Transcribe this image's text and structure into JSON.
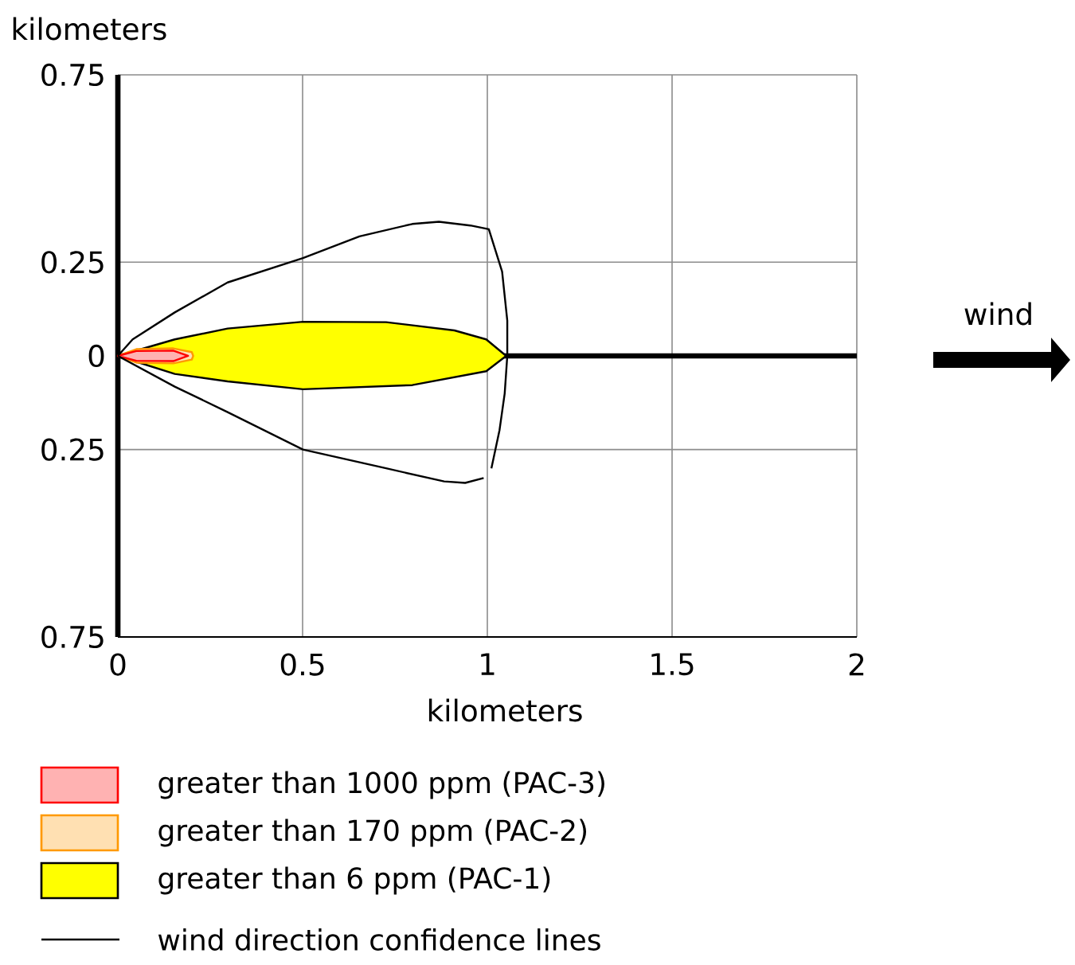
{
  "chart_data": {
    "type": "area",
    "xlabel": "kilometers",
    "ylabel": "kilometers",
    "annotations": [
      "wind"
    ],
    "xlim": [
      0,
      2
    ],
    "ylim": [
      -0.75,
      0.75
    ],
    "xticks": [
      0,
      0.5,
      1,
      1.5,
      2
    ],
    "yticks": [
      {
        "value": -0.75,
        "label": "0.75"
      },
      {
        "value": -0.25,
        "label": "0.25"
      },
      0,
      0.25,
      0.75
    ],
    "grid": true,
    "legend": "bottom",
    "ref_lines": [
      {
        "axis": "y",
        "value": 0,
        "color": "#000000"
      }
    ],
    "series": [
      {
        "name": "greater than 6 ppm (PAC-1)",
        "color": "#ffff00",
        "x": [
          0,
          0.154,
          0.297,
          0.501,
          0.726,
          0.911,
          0.997,
          1.051,
          0.997,
          0.797,
          0.501,
          0.297,
          0.154,
          0
        ],
        "values": [
          0,
          0.044,
          0.073,
          0.091,
          0.09,
          0.068,
          0.044,
          0,
          -0.041,
          -0.078,
          -0.089,
          -0.068,
          -0.048,
          0
        ]
      },
      {
        "name": "greater than 170 ppm (PAC-2)",
        "color": "#ff9900",
        "x": [
          0,
          0.05,
          0.15,
          0.2,
          0.204,
          0.2,
          0.15,
          0.05,
          0
        ],
        "values": [
          0,
          0.018,
          0.02,
          0.01,
          0,
          -0.01,
          -0.02,
          -0.018,
          0
        ]
      },
      {
        "name": "greater than 1000 ppm (PAC-3)",
        "color": "#ff0000",
        "x": [
          0,
          0.05,
          0.15,
          0.19,
          0.15,
          0.05,
          0
        ],
        "values": [
          0,
          0.013,
          0.014,
          0,
          -0.014,
          -0.013,
          0
        ]
      },
      {
        "name": "wind direction confidence lines",
        "type": "line",
        "color": "#000000",
        "x": [
          0,
          0.04,
          0.154,
          0.297,
          0.501,
          0.654,
          0.797,
          0.869,
          0.954,
          1.004,
          1.04,
          1.054,
          1.054,
          1.047,
          1.033,
          1.011
        ],
        "values": [
          0,
          0.044,
          0.116,
          0.196,
          0.261,
          0.319,
          0.352,
          0.358,
          0.348,
          0.338,
          0.225,
          0.094,
          0,
          -0.1,
          -0.198,
          -0.3
        ]
      },
      {
        "type": "line",
        "color": "#000000",
        "x": [
          0,
          0.154,
          0.297,
          0.501,
          0.726,
          0.883,
          0.94,
          0.99
        ],
        "values": [
          0,
          -0.082,
          -0.15,
          -0.25,
          -0.3,
          -0.335,
          -0.339,
          -0.326
        ]
      }
    ]
  }
}
